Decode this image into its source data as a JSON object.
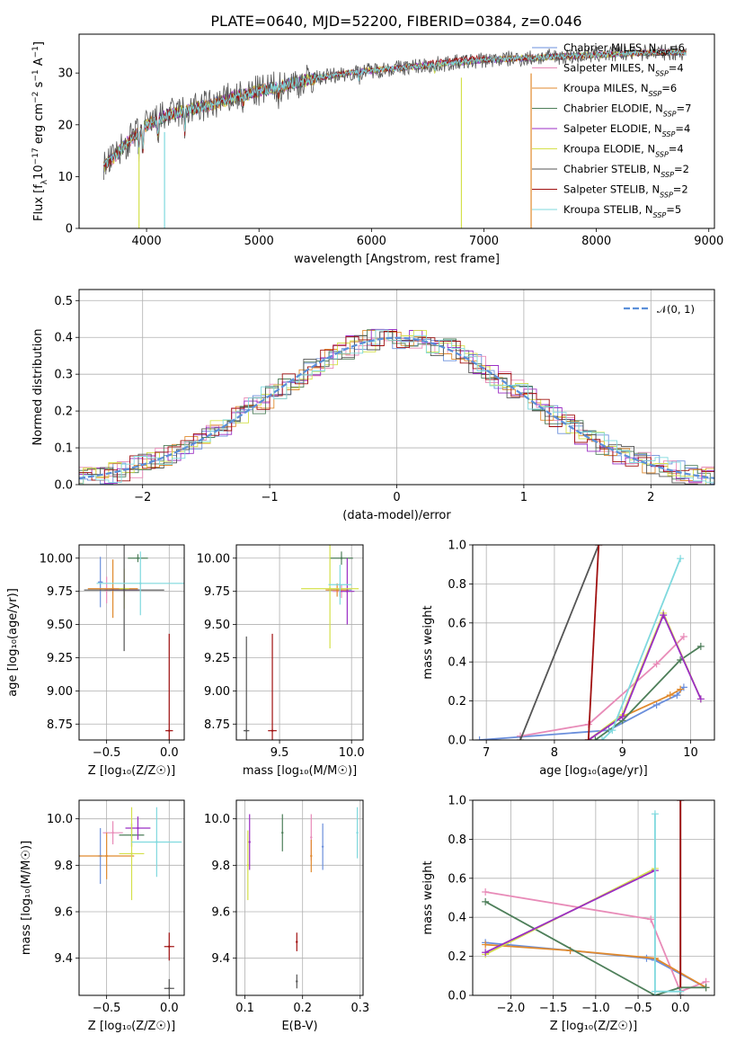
{
  "page": {
    "title": "PLATE=0640, MJD=52200, FIBERID=0384, z=0.046"
  },
  "colors": {
    "chabrier_miles": "#6b8fdc",
    "salpeter_miles": "#e88bb8",
    "kroupa_miles": "#e08a2e",
    "chabrier_elodie": "#4e7f5a",
    "salpeter_elodie": "#9b2ec4",
    "kroupa_elodie": "#d4e04a",
    "chabrier_stelib": "#555555",
    "salpeter_stelib": "#a01010",
    "kroupa_stelib": "#7fd9de",
    "normal_curve": "#5b8fd9"
  },
  "chart_data": [
    {
      "id": "spectrum",
      "type": "line",
      "title": "PLATE=0640, MJD=52200, FIBERID=0384, z=0.046",
      "xlabel": "wavelength [Angstrom, rest frame]",
      "ylabel_parts": [
        "Flux [f",
        "λ",
        "10",
        "−17",
        " erg cm",
        "−2",
        " s",
        "−1",
        " A",
        "−1",
        "]"
      ],
      "xlim": [
        3400,
        9050
      ],
      "ylim": [
        0,
        37.5
      ],
      "xticks": [
        4000,
        5000,
        6000,
        7000,
        8000,
        9000
      ],
      "yticks": [
        0,
        10,
        20,
        30
      ],
      "legend_placement": "right",
      "series": [
        {
          "name": "Chabrier MILES",
          "nssp": "6",
          "color": "#6b8fdc"
        },
        {
          "name": "Salpeter MILES",
          "nssp": "4",
          "color": "#e88bb8"
        },
        {
          "name": "Kroupa MILES",
          "nssp": "6",
          "color": "#e08a2e"
        },
        {
          "name": "Chabrier ELODIE",
          "nssp": "7",
          "color": "#4e7f5a"
        },
        {
          "name": "Salpeter ELODIE",
          "nssp": "4",
          "color": "#9b2ec4"
        },
        {
          "name": "Kroupa ELODIE",
          "nssp": "4",
          "color": "#d4e04a"
        },
        {
          "name": "Chabrier STELIB",
          "nssp": "2",
          "color": "#555555"
        },
        {
          "name": "Salpeter STELIB",
          "nssp": "2",
          "color": "#a01010"
        },
        {
          "name": "Kroupa STELIB",
          "nssp": "5",
          "color": "#7fd9de"
        }
      ],
      "nssp_label": "N",
      "nssp_sub": "SSP",
      "continuum": [
        [
          3620,
          12
        ],
        [
          3700,
          13.5
        ],
        [
          3800,
          16
        ],
        [
          3900,
          18
        ],
        [
          4000,
          20
        ],
        [
          4100,
          21
        ],
        [
          4200,
          22
        ],
        [
          4400,
          23
        ],
        [
          4600,
          24
        ],
        [
          4800,
          25.5
        ],
        [
          5000,
          26.5
        ],
        [
          5200,
          27.5
        ],
        [
          5500,
          29
        ],
        [
          5800,
          30
        ],
        [
          6000,
          30.5
        ],
        [
          6500,
          31.5
        ],
        [
          7000,
          32.5
        ],
        [
          7500,
          33
        ],
        [
          8000,
          33.5
        ],
        [
          8500,
          34
        ],
        [
          8800,
          34
        ]
      ],
      "absorption_spikes_x": [
        3933,
        4160,
        6800,
        7420
      ]
    },
    {
      "id": "residuals",
      "type": "line",
      "xlabel": "(data-model)/error",
      "ylabel": "Normed distribution",
      "xlim": [
        -2.5,
        2.5
      ],
      "ylim": [
        0,
        0.53
      ],
      "xticks": [
        -2,
        -1,
        0,
        1,
        2
      ],
      "yticks": [
        0.0,
        0.1,
        0.2,
        0.3,
        0.4,
        0.5
      ],
      "legend": "𝒩(0, 1)",
      "histogram_bin_width": 0.1
    },
    {
      "id": "age_vs_Z",
      "type": "scatter",
      "xlabel": "Z [log₁₀(Z/Z☉)]",
      "ylabel": "age  [log₁₀(age/yr)]",
      "xlim": [
        -0.72,
        0.12
      ],
      "ylim": [
        8.63,
        10.1
      ],
      "xticks": [
        -0.5,
        0.0
      ],
      "yticks": [
        8.75,
        9.0,
        9.25,
        9.5,
        9.75,
        10.0
      ],
      "points": [
        {
          "series": "Chabrier MILES",
          "x": -0.55,
          "y": 9.82,
          "xerr": 0.02,
          "yerr": 0.19
        },
        {
          "series": "Salpeter MILES",
          "x": -0.5,
          "y": 9.76,
          "xerr": 0.02,
          "yerr": 0.1
        },
        {
          "series": "Kroupa MILES",
          "x": -0.45,
          "y": 9.77,
          "xerr": 0.2,
          "yerr": 0.22
        },
        {
          "series": "Chabrier ELODIE",
          "x": -0.25,
          "y": 10.0,
          "xerr": 0.08,
          "yerr": 0.03
        },
        {
          "series": "Salpeter ELODIE",
          "x": -0.36,
          "y": 9.76,
          "xerr": 0.12,
          "yerr": 0.05
        },
        {
          "series": "Kroupa ELODIE",
          "x": -0.36,
          "y": 9.77,
          "xerr": 0.04,
          "yerr": 0.15
        },
        {
          "series": "Chabrier STELIB",
          "x": -0.36,
          "y": 9.76,
          "xerr": 0.32,
          "yerr": 0.46
        },
        {
          "series": "Salpeter STELIB",
          "x": 0.0,
          "y": 8.7,
          "xerr": 0.03,
          "yerr": 0.73
        },
        {
          "series": "Kroupa STELIB",
          "x": -0.23,
          "y": 9.81,
          "xerr": 0.35,
          "yerr": 0.24
        }
      ]
    },
    {
      "id": "age_vs_mass",
      "type": "scatter",
      "xlabel": "mass [log₁₀(M/M☉)]",
      "ylabel": "",
      "xlim": [
        9.2,
        10.08
      ],
      "ylim": [
        8.63,
        10.1
      ],
      "xticks": [
        9.5,
        10.0
      ],
      "yticks": [
        8.75,
        9.0,
        9.25,
        9.5,
        9.75,
        10.0
      ],
      "points": [
        {
          "series": "Chabrier MILES",
          "x": 9.92,
          "y": 9.76,
          "xerr": 0.08,
          "yerr": 0.05
        },
        {
          "series": "Salpeter MILES",
          "x": 9.93,
          "y": 9.75,
          "xerr": 0.06,
          "yerr": 0.05
        },
        {
          "series": "Kroupa MILES",
          "x": 9.9,
          "y": 9.76,
          "xerr": 0.08,
          "yerr": 0.05
        },
        {
          "series": "Chabrier ELODIE",
          "x": 9.93,
          "y": 10.0,
          "xerr": 0.08,
          "yerr": 0.05
        },
        {
          "series": "Salpeter ELODIE",
          "x": 9.97,
          "y": 9.75,
          "xerr": 0.05,
          "yerr": 0.25
        },
        {
          "series": "Kroupa ELODIE",
          "x": 9.85,
          "y": 9.77,
          "xerr": 0.2,
          "yerr": 0.45
        },
        {
          "series": "Chabrier STELIB",
          "x": 9.27,
          "y": 8.7,
          "xerr": 0.02,
          "yerr": 0.71
        },
        {
          "series": "Salpeter STELIB",
          "x": 9.45,
          "y": 8.7,
          "xerr": 0.03,
          "yerr": 0.73
        },
        {
          "series": "Kroupa STELIB",
          "x": 9.92,
          "y": 9.8,
          "xerr": 0.08,
          "yerr": 0.15
        }
      ]
    },
    {
      "id": "mass_weight_vs_age",
      "type": "line",
      "xlabel": "age  [log₁₀(age/yr)]",
      "ylabel": "mass weight",
      "xlim": [
        6.8,
        10.35
      ],
      "ylim": [
        0,
        1.0
      ],
      "xticks": [
        7,
        8,
        9,
        10
      ],
      "yticks": [
        0.0,
        0.2,
        0.4,
        0.6,
        0.8,
        1.0
      ],
      "series": [
        {
          "name": "Chabrier MILES",
          "x": [
            6.9,
            8.8,
            9.5,
            9.8,
            9.9
          ],
          "y": [
            0.0,
            0.05,
            0.18,
            0.23,
            0.27
          ]
        },
        {
          "name": "Salpeter MILES",
          "x": [
            7.5,
            8.5,
            9.5,
            9.9
          ],
          "y": [
            0.02,
            0.08,
            0.39,
            0.53
          ]
        },
        {
          "name": "Kroupa MILES",
          "x": [
            8.5,
            9.0,
            9.7,
            9.85
          ],
          "y": [
            0.0,
            0.12,
            0.23,
            0.26
          ]
        },
        {
          "name": "Chabrier ELODIE",
          "x": [
            8.6,
            9.0,
            9.85,
            10.15
          ],
          "y": [
            0.0,
            0.1,
            0.41,
            0.48
          ]
        },
        {
          "name": "Kroupa ELODIE",
          "x": [
            8.5,
            9.0,
            9.6,
            10.15
          ],
          "y": [
            0.0,
            0.13,
            0.65,
            0.21
          ]
        },
        {
          "name": "Salpeter ELODIE",
          "x": [
            8.5,
            9.0,
            9.6,
            10.15
          ],
          "y": [
            0.0,
            0.12,
            0.64,
            0.21
          ]
        },
        {
          "name": "Chabrier STELIB",
          "x": [
            7.5,
            8.65
          ],
          "y": [
            0.0,
            1.0
          ]
        },
        {
          "name": "Salpeter STELIB",
          "x": [
            8.5,
            8.65
          ],
          "y": [
            0.0,
            1.0
          ]
        },
        {
          "name": "Kroupa STELIB",
          "x": [
            8.7,
            8.85,
            9.85
          ],
          "y": [
            0.0,
            0.05,
            0.93
          ]
        }
      ]
    },
    {
      "id": "mass_vs_Z",
      "type": "scatter",
      "xlabel": "Z [log₁₀(Z/Z☉)]",
      "ylabel": "mass [log₁₀(M/M☉)]",
      "xlim": [
        -0.72,
        0.12
      ],
      "ylim": [
        9.24,
        10.08
      ],
      "xticks": [
        -0.5,
        0.0
      ],
      "yticks": [
        9.4,
        9.6,
        9.8,
        10.0
      ],
      "points": [
        {
          "series": "Chabrier MILES",
          "x": -0.55,
          "y": 9.84,
          "xerr": 0.02,
          "yerr": 0.12
        },
        {
          "series": "Salpeter MILES",
          "x": -0.45,
          "y": 9.94,
          "xerr": 0.08,
          "yerr": 0.05
        },
        {
          "series": "Kroupa MILES",
          "x": -0.5,
          "y": 9.84,
          "xerr": 0.22,
          "yerr": 0.1
        },
        {
          "series": "Chabrier ELODIE",
          "x": -0.3,
          "y": 9.93,
          "xerr": 0.1,
          "yerr": 0.05
        },
        {
          "series": "Salpeter ELODIE",
          "x": -0.25,
          "y": 9.96,
          "xerr": 0.1,
          "yerr": 0.05
        },
        {
          "series": "Kroupa ELODIE",
          "x": -0.3,
          "y": 9.85,
          "xerr": 0.1,
          "yerr": 0.2
        },
        {
          "series": "Chabrier STELIB",
          "x": 0.0,
          "y": 9.27,
          "xerr": 0.04,
          "yerr": 0.04
        },
        {
          "series": "Salpeter STELIB",
          "x": 0.0,
          "y": 9.45,
          "xerr": 0.04,
          "yerr": 0.06
        },
        {
          "series": "Kroupa STELIB",
          "x": -0.1,
          "y": 9.9,
          "xerr": 0.2,
          "yerr": 0.15
        }
      ]
    },
    {
      "id": "mass_vs_ebv",
      "type": "scatter",
      "xlabel": "E(B-V)",
      "ylabel": "",
      "xlim": [
        0.085,
        0.305
      ],
      "ylim": [
        9.24,
        10.08
      ],
      "xticks": [
        0.1,
        0.2,
        0.3
      ],
      "yticks": [
        9.4,
        9.6,
        9.8,
        10.0
      ],
      "points": [
        {
          "series": "Chabrier MILES",
          "x": 0.235,
          "y": 9.88,
          "yerr": 0.1
        },
        {
          "series": "Salpeter MILES",
          "x": 0.215,
          "y": 9.92,
          "yerr": 0.1
        },
        {
          "series": "Kroupa MILES",
          "x": 0.215,
          "y": 9.84,
          "yerr": 0.07
        },
        {
          "series": "Chabrier ELODIE",
          "x": 0.165,
          "y": 9.94,
          "yerr": 0.08
        },
        {
          "series": "Salpeter ELODIE",
          "x": 0.108,
          "y": 9.9,
          "yerr": 0.12
        },
        {
          "series": "Kroupa ELODIE",
          "x": 0.105,
          "y": 9.8,
          "yerr": 0.15
        },
        {
          "series": "Chabrier STELIB",
          "x": 0.19,
          "y": 9.3,
          "yerr": 0.03
        },
        {
          "series": "Salpeter STELIB",
          "x": 0.19,
          "y": 9.47,
          "yerr": 0.04
        },
        {
          "series": "Kroupa STELIB",
          "x": 0.295,
          "y": 9.94,
          "yerr": 0.11
        }
      ]
    },
    {
      "id": "mass_weight_vs_Z",
      "type": "line",
      "xlabel": "Z [log₁₀(Z/Z☉)]",
      "ylabel": "mass weight",
      "xlim": [
        -2.45,
        0.4
      ],
      "ylim": [
        0,
        1.0
      ],
      "xticks": [
        -2.0,
        -1.5,
        -1.0,
        -0.5,
        0.0
      ],
      "yticks": [
        0.0,
        0.2,
        0.4,
        0.6,
        0.8,
        1.0
      ],
      "series": [
        {
          "name": "Chabrier MILES",
          "x": [
            -2.3,
            -1.3,
            -0.4,
            -0.3,
            0.3
          ],
          "y": [
            0.27,
            0.23,
            0.19,
            0.18,
            0.04
          ]
        },
        {
          "name": "Salpeter MILES",
          "x": [
            -2.3,
            -0.35,
            0.0,
            0.3
          ],
          "y": [
            0.53,
            0.39,
            0.02,
            0.07
          ]
        },
        {
          "name": "Kroupa MILES",
          "x": [
            -2.3,
            -1.3,
            -0.3,
            0.3
          ],
          "y": [
            0.26,
            0.23,
            0.19,
            0.04
          ]
        },
        {
          "name": "Chabrier ELODIE",
          "x": [
            -2.3,
            -0.3,
            0.0,
            0.3
          ],
          "y": [
            0.48,
            0.0,
            0.04,
            0.04
          ]
        },
        {
          "name": "Kroupa ELODIE",
          "x": [
            -2.3,
            -0.3
          ],
          "y": [
            0.21,
            0.65
          ]
        },
        {
          "name": "Salpeter ELODIE",
          "x": [
            -2.3,
            -0.3
          ],
          "y": [
            0.22,
            0.64
          ]
        },
        {
          "name": "Chabrier STELIB",
          "x": [
            0.0,
            0.0
          ],
          "y": [
            0.0,
            1.0
          ]
        },
        {
          "name": "Salpeter STELIB",
          "x": [
            0.0,
            0.0
          ],
          "y": [
            0.0,
            1.0
          ]
        },
        {
          "name": "Kroupa STELIB",
          "x": [
            -0.3,
            -0.3,
            0.0
          ],
          "y": [
            0.93,
            0.02,
            0.02
          ]
        }
      ]
    }
  ]
}
